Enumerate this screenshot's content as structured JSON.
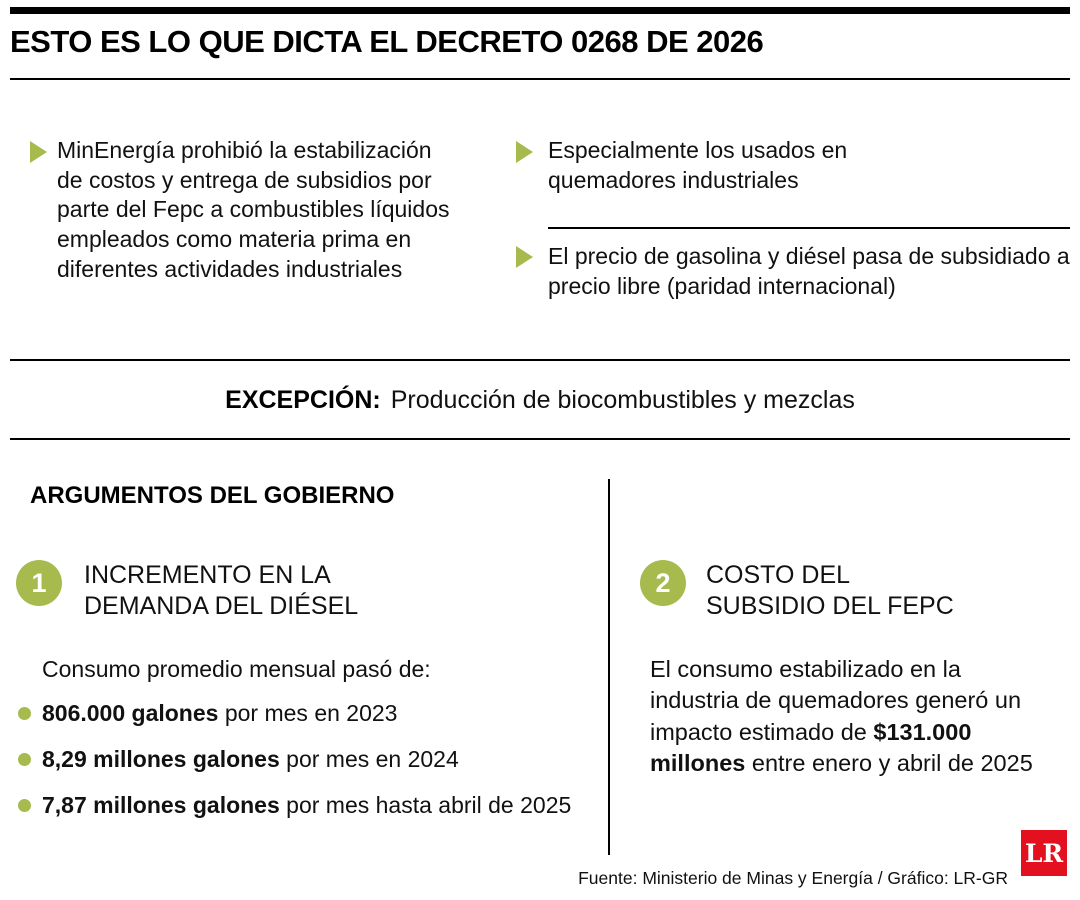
{
  "title": "ESTO ES LO QUE DICTA EL DECRETO 0268 DE 2026",
  "colors": {
    "accent_green": "#a7ba4e",
    "logo_red": "#e3101f"
  },
  "intro": {
    "left_bullet": "MinEnergía prohibió la estabilización de costos y entrega de subsidios por parte del Fepc a combustibles líquidos empleados como materia prima en diferentes actividades industriales",
    "right_bullet_1": "Especialmente los usados en quemadores industriales",
    "right_bullet_2": "El precio de gasolina y diésel pasa de subsidiado a precio libre (paridad internacional)"
  },
  "exception": {
    "label": "EXCEPCIÓN:",
    "text": "Producción de biocombustibles y mezclas"
  },
  "arguments": {
    "heading": "ARGUMENTOS DEL GOBIERNO",
    "left": {
      "number": "1",
      "title_lines": [
        "INCREMENTO EN LA",
        "DEMANDA DEL DIÉSEL"
      ],
      "lead": "Consumo promedio mensual pasó de:",
      "bullets": [
        {
          "bold": "806.000 galones",
          "rest": " por mes en 2023"
        },
        {
          "bold": "8,29 millones galones",
          "rest": " por mes en 2024"
        },
        {
          "bold": "7,87 millones galones",
          "rest": " por mes hasta abril de 2025"
        }
      ]
    },
    "right": {
      "number": "2",
      "title_lines": [
        "COSTO DEL",
        "SUBSIDIO DEL FEPC"
      ],
      "text_pre": "El consumo estabilizado en la industria de quemadores generó un impacto estimado de ",
      "text_bold": "$131.000 millones",
      "text_post": " entre enero y abril de 2025"
    }
  },
  "footer": {
    "source": "Fuente: Ministerio de Minas y Energía / Gráfico: LR-GR",
    "logo_text": "LR"
  }
}
